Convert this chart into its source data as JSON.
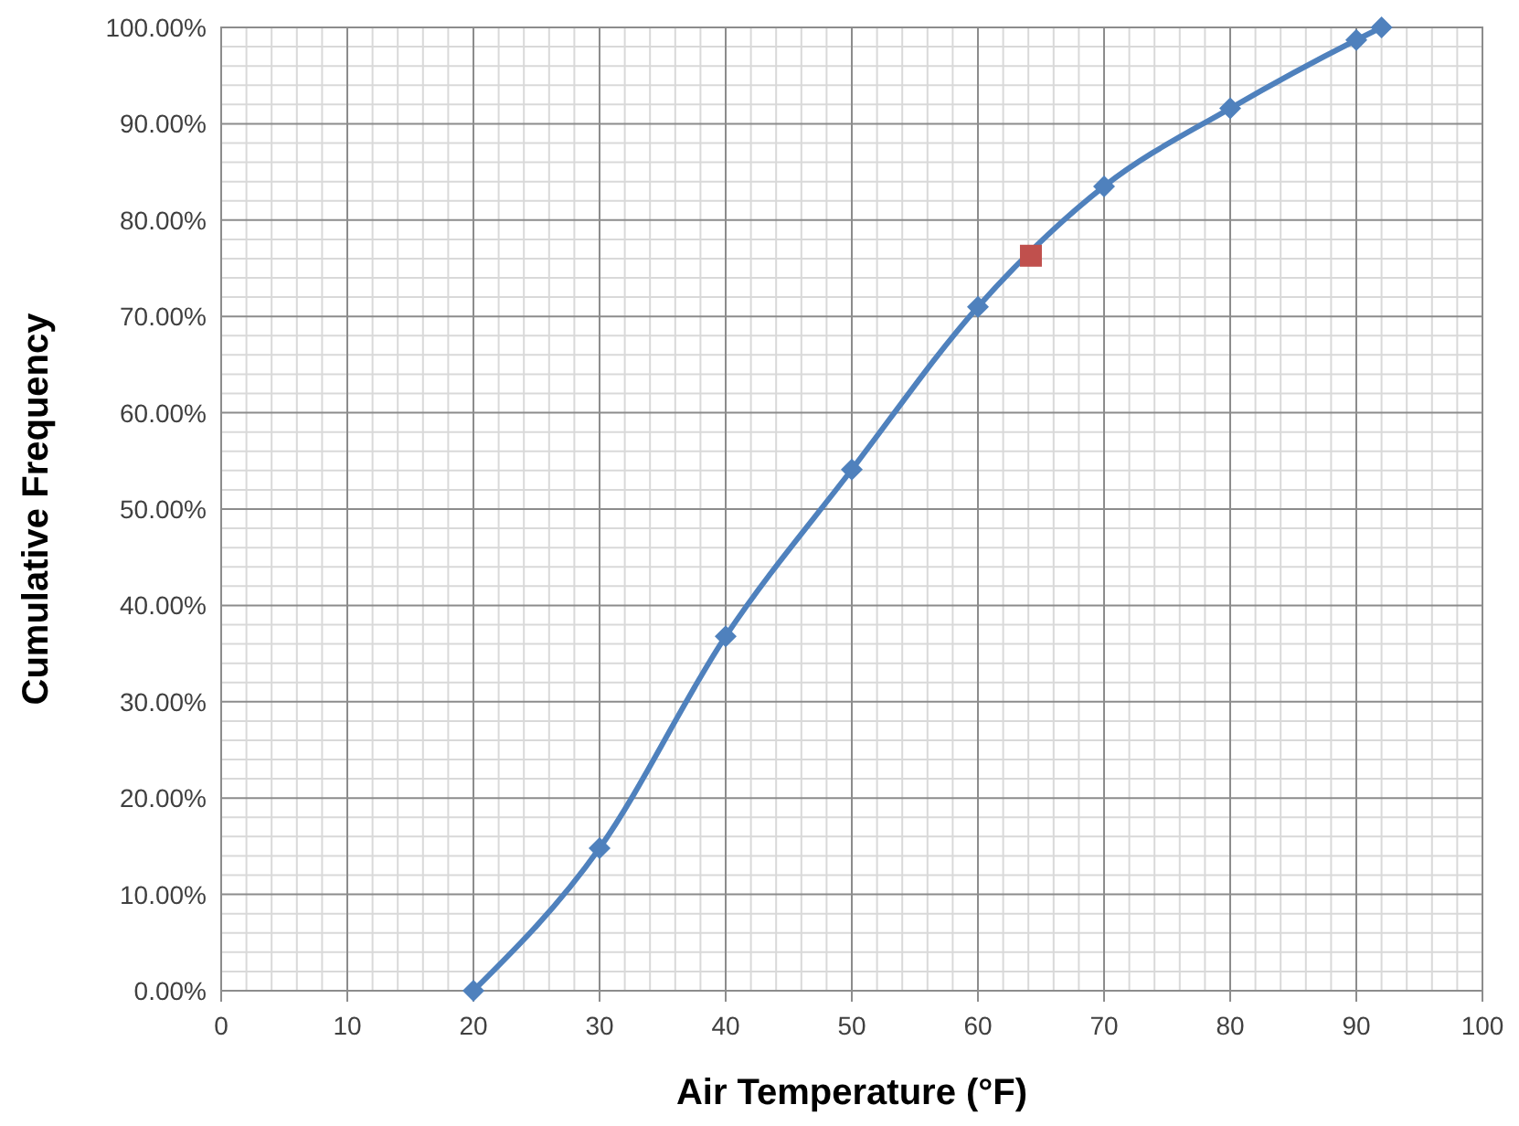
{
  "chart_data": {
    "type": "line",
    "xlabel": "Air Temperature (°F)",
    "ylabel": "Cumulative Frequency",
    "xlim": [
      0,
      100
    ],
    "xticks": [
      0,
      10,
      20,
      30,
      40,
      50,
      60,
      70,
      80,
      90,
      100
    ],
    "ylim": [
      0,
      100
    ],
    "yticks": [
      {
        "value": 0,
        "label": "0.00%"
      },
      {
        "value": 10,
        "label": "10.00%"
      },
      {
        "value": 20,
        "label": "20.00%"
      },
      {
        "value": 30,
        "label": "30.00%"
      },
      {
        "value": 40,
        "label": "40.00%"
      },
      {
        "value": 50,
        "label": "50.00%"
      },
      {
        "value": 60,
        "label": "60.00%"
      },
      {
        "value": 70,
        "label": "70.00%"
      },
      {
        "value": 80,
        "label": "80.00%"
      },
      {
        "value": 90,
        "label": "90.00%"
      },
      {
        "value": 100,
        "label": "100.00%"
      }
    ],
    "grid": true,
    "series": [
      {
        "color": "#4f81bd",
        "marker": "diamond",
        "x": [
          20,
          30,
          40,
          50,
          60,
          70,
          80,
          90,
          92
        ],
        "values": [
          0,
          14.8,
          36.8,
          54.1,
          71.0,
          83.5,
          91.6,
          98.7,
          100
        ]
      },
      {
        "type": "scatter",
        "color": "#c0504d",
        "marker": "square",
        "x": [
          64.2
        ],
        "values": [
          76.3
        ]
      }
    ]
  }
}
